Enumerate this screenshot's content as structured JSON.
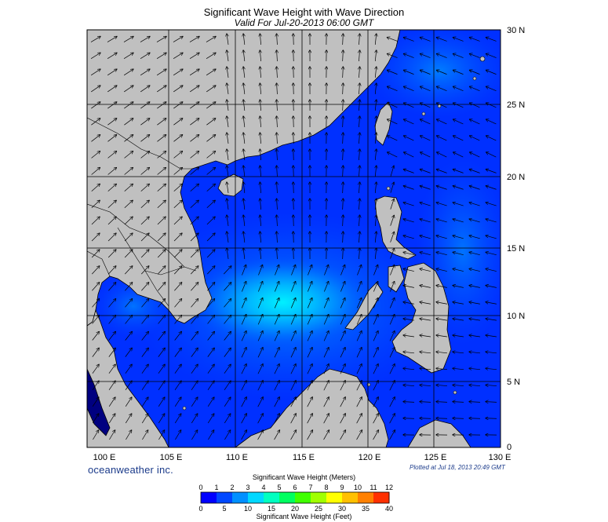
{
  "title": "Significant Wave Height with Wave Direction",
  "subtitle": "Valid For Jul-20-2013 06:00 GMT",
  "map": {
    "lon_labels": [
      "100 E",
      "105 E",
      "110 E",
      "115 E",
      "120 E",
      "125 E",
      "130 E"
    ],
    "lat_labels": [
      "30 N",
      "25 N",
      "20 N",
      "15 N",
      "10 N",
      "5 N",
      "0"
    ],
    "land_color": "#c0c0c0",
    "ocean_colors": [
      "#0000ff",
      "#0038ff",
      "#0070ff",
      "#00a8ff",
      "#00e8ff"
    ]
  },
  "brand": "oceanweather inc.",
  "plotted": "Plotted at Jul 18, 2013 20:49 GMT",
  "colorbar": {
    "title_top": "Significant Wave Height (Meters)",
    "title_bottom": "Significant Wave Height (Feet)",
    "meters_ticks": [
      "0",
      "1",
      "2",
      "3",
      "4",
      "5",
      "6",
      "7",
      "8",
      "9",
      "10",
      "11",
      "12"
    ],
    "feet_ticks": [
      "0",
      "5",
      "10",
      "15",
      "20",
      "25",
      "30",
      "35",
      "40"
    ],
    "colors": [
      "#0000ff",
      "#0048ff",
      "#0090ff",
      "#00d8ff",
      "#00ffc0",
      "#00ff60",
      "#40ff00",
      "#a0ff00",
      "#ffff00",
      "#ffc000",
      "#ff8000",
      "#ff3000"
    ]
  }
}
